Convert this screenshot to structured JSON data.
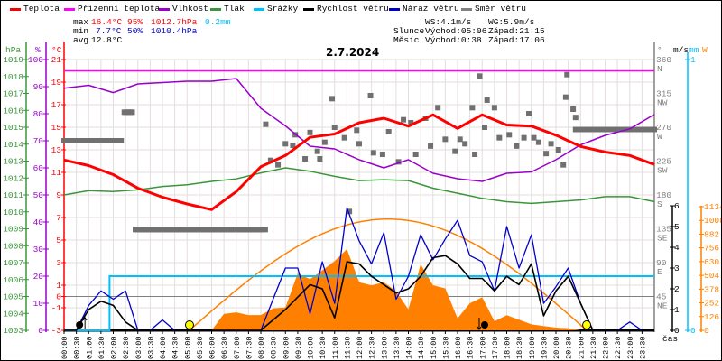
{
  "legend": [
    {
      "label": "Teplota",
      "color": "#ff0000"
    },
    {
      "label": "Přízemní teplota",
      "color": "#ff00ff"
    },
    {
      "label": "Vlhkost",
      "color": "#9900cc"
    },
    {
      "label": "Tlak",
      "color": "#3a963a"
    },
    {
      "label": "Srážky",
      "color": "#00bfff"
    },
    {
      "label": "Rychlost větru",
      "color": "#000000"
    },
    {
      "label": "Náraz větru",
      "color": "#0000cc"
    },
    {
      "label": "Směr větru",
      "color": "#808080"
    }
  ],
  "stats": {
    "max_label": "max",
    "max_temp": "16.4°C",
    "max_hum": "95%",
    "max_press": "1012.7hPa",
    "max_precip": "0.2mm",
    "min_label": "min",
    "min_temp": "7.7°C",
    "min_hum": "50%",
    "min_press": "1010.4hPa",
    "avg_label": "avg",
    "avg_temp": "12.8°C",
    "ws": "WS:4.1m/s",
    "wg": "WG:5.9m/s",
    "sun_label": "Slunce",
    "sunrise": "Východ:05:06",
    "sunset": "Západ:21:15",
    "moon_label": "Měsíc",
    "moonrise": "Východ:0:38",
    "moonset": "Západ:17:06"
  },
  "chart_data": {
    "type": "line",
    "title": "2.7.2024",
    "xlabel": "čas",
    "x_ticks": [
      "00:00",
      "00:30",
      "01:00",
      "01:30",
      "02:00",
      "02:30",
      "03:00",
      "03:30",
      "04:00",
      "04:30",
      "05:00",
      "05:30",
      "06:00",
      "06:30",
      "07:00",
      "07:30",
      "08:00",
      "08:30",
      "09:00",
      "09:30",
      "10:00",
      "10:30",
      "11:00",
      "11:30",
      "12:00",
      "12:30",
      "13:00",
      "13:30",
      "14:00",
      "14:30",
      "15:00",
      "15:30",
      "16:00",
      "16:30",
      "17:00",
      "17:30",
      "18:00",
      "18:30",
      "19:00",
      "19:30",
      "20:00",
      "20:30",
      "21:00",
      "21:30",
      "22:00",
      "22:30",
      "23:00",
      "23:30"
    ],
    "axes": {
      "pressure": {
        "unit": "hPa",
        "range": [
          1003,
          1019
        ],
        "ticks": [
          "1019",
          "1018",
          "1017",
          "1016",
          "1015",
          "1014",
          "1013",
          "1012",
          "1011",
          "1010",
          "1009",
          "1008",
          "1007",
          "1006",
          "1005",
          "1004",
          "1003"
        ]
      },
      "humidity": {
        "unit": "%",
        "range": [
          0,
          100
        ],
        "ticks": [
          "100",
          "90",
          "80",
          "70",
          "60",
          "50",
          "40",
          "30",
          "20",
          "10",
          "0"
        ]
      },
      "temperature": {
        "unit": "°C",
        "range": [
          -3,
          21
        ],
        "ticks": [
          "21",
          "19",
          "17",
          "15",
          "13",
          "11",
          "9",
          "7",
          "5",
          "3",
          "1",
          "0",
          "-1",
          "-3"
        ]
      },
      "direction": {
        "unit": "°",
        "range": [
          0,
          360
        ],
        "ticks": [
          {
            "v": "360",
            "c": "N"
          },
          {
            "v": "315",
            "c": "NW"
          },
          {
            "v": "270",
            "c": "W"
          },
          {
            "v": "225",
            "c": "SW"
          },
          {
            "v": "180",
            "c": "S"
          },
          {
            "v": "135",
            "c": "SE"
          },
          {
            "v": "90",
            "c": "E"
          },
          {
            "v": "45",
            "c": "NE"
          }
        ]
      },
      "wind": {
        "unit": "m/s",
        "range": [
          0,
          6
        ],
        "ticks": [
          "6",
          "5",
          "4",
          "3",
          "2",
          "1",
          "0"
        ]
      },
      "precip": {
        "unit": "mm",
        "range": [
          0,
          1
        ],
        "ticks": [
          "1",
          "0"
        ]
      },
      "solar": {
        "unit": "W",
        "range": [
          0,
          1134
        ],
        "ticks": [
          "1134",
          "1008",
          "882",
          "756",
          "630",
          "504",
          "378",
          "252",
          "126",
          "0"
        ]
      }
    },
    "series_hourly_hours": [
      0,
      1,
      2,
      3,
      4,
      5,
      6,
      7,
      8,
      9,
      10,
      11,
      12,
      13,
      14,
      15,
      16,
      17,
      18,
      19,
      20,
      21,
      22,
      23,
      24
    ],
    "temperature": [
      12.1,
      11.6,
      10.8,
      9.6,
      8.8,
      8.2,
      7.7,
      9.3,
      11.5,
      12.5,
      14.1,
      14.4,
      15.4,
      15.8,
      15.1,
      16.1,
      14.9,
      16.1,
      15.2,
      15.1,
      14.3,
      13.3,
      12.8,
      12.5,
      11.7
    ],
    "apparent_temperature": [
      20,
      20,
      20,
      20,
      20,
      20,
      20,
      20,
      20,
      20,
      20,
      20,
      20,
      20,
      20,
      20,
      20,
      20,
      20,
      20,
      20,
      20,
      20,
      20,
      20
    ],
    "humidity": [
      89.4,
      90.5,
      87.8,
      91,
      91.5,
      92,
      92,
      93,
      82,
      75.5,
      68,
      67,
      63,
      60,
      63,
      58,
      56,
      55,
      58,
      58.5,
      63,
      68.5,
      72,
      74.4,
      79.7
    ],
    "pressure": [
      1011.0,
      1011.25,
      1011.2,
      1011.3,
      1011.5,
      1011.6,
      1011.8,
      1011.95,
      1012.3,
      1012.6,
      1012.4,
      1012.1,
      1011.85,
      1011.9,
      1011.85,
      1011.4,
      1011.1,
      1010.8,
      1010.6,
      1010.5,
      1010.6,
      1010.7,
      1010.9,
      1010.9,
      1010.6
    ],
    "wind_speed_halfhourly": [
      0,
      0,
      1.0,
      1.4,
      1.2,
      0.4,
      0,
      0,
      0,
      0,
      0,
      0,
      0,
      0,
      0,
      0,
      0,
      0.5,
      1.0,
      1.6,
      2.2,
      2.0,
      0.6,
      3.3,
      3.2,
      2.6,
      2.2,
      1.8,
      2.0,
      2.6,
      3.5,
      3.6,
      3.2,
      2.5,
      2.5,
      1.9,
      2.6,
      2.2,
      3.2,
      0.7,
      1.9,
      2.6,
      1.3,
      0,
      0,
      0,
      0,
      0,
      0
    ],
    "wind_gust_halfhourly": [
      0,
      0,
      1.2,
      1.9,
      1.5,
      1.9,
      0,
      0,
      0.5,
      0,
      0,
      0,
      0,
      0,
      0,
      0,
      0,
      1.5,
      3.0,
      3.0,
      0.8,
      3.3,
      1.3,
      5.9,
      4.3,
      3.2,
      4.7,
      1.5,
      2.6,
      4.6,
      3.4,
      4.4,
      5.3,
      3.6,
      3.3,
      1.9,
      5.0,
      3.0,
      4.6,
      1.3,
      2.1,
      3.0,
      1.3,
      0,
      0,
      0,
      0.4,
      0,
      0
    ],
    "solar_halfhourly": [
      0,
      0,
      0,
      0,
      0,
      0,
      0,
      0,
      0,
      0,
      0,
      0,
      0,
      151,
      165,
      140,
      140,
      200,
      210,
      524,
      470,
      550,
      635,
      745,
      441,
      413,
      441,
      358,
      193,
      607,
      413,
      385,
      110,
      248,
      303,
      83,
      138,
      97,
      55,
      40,
      25,
      20,
      0,
      0,
      0,
      0,
      0,
      0,
      0
    ],
    "solar_theoretical_peak": 1020,
    "precip_cumulative": [
      [
        0,
        0
      ],
      [
        1.85,
        0
      ],
      [
        1.85,
        0.2
      ],
      [
        24,
        0.2
      ]
    ],
    "wind_direction_constant": [
      [
        0,
        2.4,
        252
      ],
      [
        2.45,
        2.8,
        290
      ],
      [
        2.9,
        8.2,
        134
      ],
      [
        20.8,
        24,
        267
      ]
    ],
    "wind_direction_points": [
      [
        8.2,
        274
      ],
      [
        8.4,
        226
      ],
      [
        8.7,
        220
      ],
      [
        9.0,
        248
      ],
      [
        9.3,
        246
      ],
      [
        9.4,
        260
      ],
      [
        9.8,
        228
      ],
      [
        10.0,
        263
      ],
      [
        10.3,
        238
      ],
      [
        10.4,
        228
      ],
      [
        10.6,
        250
      ],
      [
        10.9,
        308
      ],
      [
        11.0,
        270
      ],
      [
        11.4,
        256
      ],
      [
        11.6,
        158
      ],
      [
        11.9,
        266
      ],
      [
        12.0,
        248
      ],
      [
        12.46,
        312
      ],
      [
        12.58,
        236
      ],
      [
        12.95,
        234
      ],
      [
        13.2,
        264
      ],
      [
        13.6,
        224
      ],
      [
        13.8,
        280
      ],
      [
        14.1,
        276
      ],
      [
        14.3,
        234
      ],
      [
        14.7,
        282
      ],
      [
        14.9,
        245
      ],
      [
        15.2,
        296
      ],
      [
        15.5,
        254
      ],
      [
        15.9,
        238
      ],
      [
        16.1,
        254
      ],
      [
        16.3,
        248
      ],
      [
        16.6,
        296
      ],
      [
        16.7,
        234
      ],
      [
        16.9,
        338
      ],
      [
        17.1,
        270
      ],
      [
        17.2,
        306
      ],
      [
        17.5,
        296
      ],
      [
        17.7,
        256
      ],
      [
        18.1,
        260
      ],
      [
        18.4,
        245
      ],
      [
        18.7,
        256
      ],
      [
        18.9,
        288
      ],
      [
        19.1,
        256
      ],
      [
        19.3,
        250
      ],
      [
        19.6,
        235
      ],
      [
        19.8,
        248
      ],
      [
        20.1,
        240
      ],
      [
        20.3,
        220
      ],
      [
        20.4,
        310
      ],
      [
        20.45,
        340
      ],
      [
        20.7,
        294
      ],
      [
        20.8,
        283
      ]
    ],
    "sun_events_hours": [
      5.1,
      21.25
    ],
    "moon_events_hours": [
      0.63,
      17.1
    ]
  }
}
